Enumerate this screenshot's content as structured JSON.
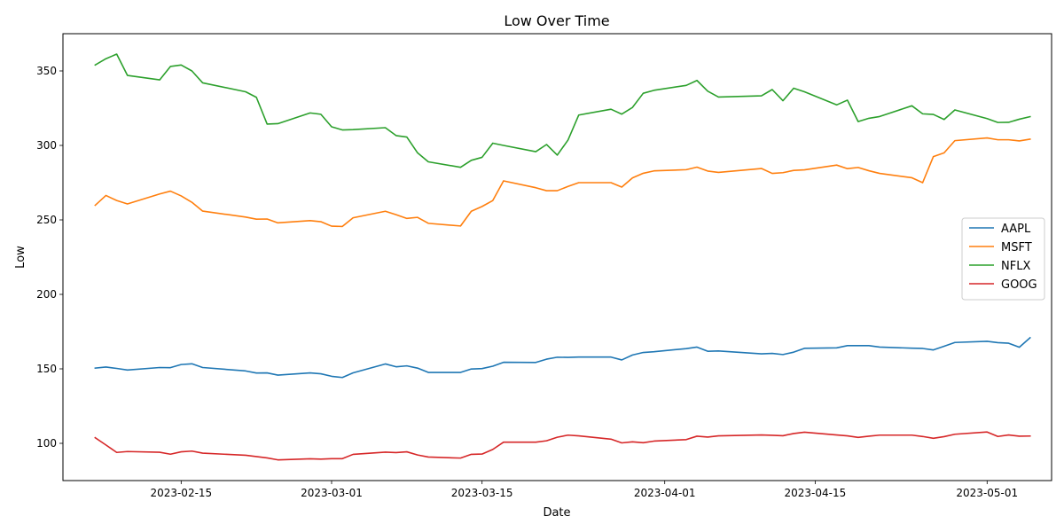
{
  "chart_data": {
    "type": "line",
    "title": "Low Over Time",
    "xlabel": "Date",
    "ylabel": "Low",
    "xlim": [
      "2023-02-04",
      "2023-05-07"
    ],
    "ylim": [
      75,
      375
    ],
    "x_ticks": [
      "2023-02-15",
      "2023-03-01",
      "2023-03-15",
      "2023-04-01",
      "2023-04-15",
      "2023-05-01"
    ],
    "y_ticks": [
      100,
      150,
      200,
      250,
      300,
      350
    ],
    "grid": false,
    "legend_position": "center-right",
    "x": [
      "2023-02-07",
      "2023-02-08",
      "2023-02-09",
      "2023-02-10",
      "2023-02-13",
      "2023-02-14",
      "2023-02-15",
      "2023-02-16",
      "2023-02-17",
      "2023-02-21",
      "2023-02-22",
      "2023-02-23",
      "2023-02-24",
      "2023-02-27",
      "2023-02-28",
      "2023-03-01",
      "2023-03-02",
      "2023-03-03",
      "2023-03-06",
      "2023-03-07",
      "2023-03-08",
      "2023-03-09",
      "2023-03-10",
      "2023-03-13",
      "2023-03-14",
      "2023-03-15",
      "2023-03-16",
      "2023-03-17",
      "2023-03-20",
      "2023-03-21",
      "2023-03-22",
      "2023-03-23",
      "2023-03-24",
      "2023-03-27",
      "2023-03-28",
      "2023-03-29",
      "2023-03-30",
      "2023-03-31",
      "2023-04-03",
      "2023-04-04",
      "2023-04-05",
      "2023-04-06",
      "2023-04-10",
      "2023-04-11",
      "2023-04-12",
      "2023-04-13",
      "2023-04-14",
      "2023-04-17",
      "2023-04-18",
      "2023-04-19",
      "2023-04-20",
      "2023-04-21",
      "2023-04-24",
      "2023-04-25",
      "2023-04-26",
      "2023-04-27",
      "2023-04-28",
      "2023-05-01",
      "2023-05-02",
      "2023-05-03",
      "2023-05-04",
      "2023-05-05"
    ],
    "series": [
      {
        "name": "AAPL",
        "color": "#1f77b4",
        "values": [
          150.5,
          151.2,
          150.3,
          149.2,
          150.9,
          150.8,
          152.9,
          153.4,
          150.9,
          148.6,
          147.2,
          147.3,
          145.8,
          147.3,
          146.7,
          145.0,
          144.2,
          147.3,
          153.3,
          151.4,
          152.0,
          150.5,
          147.6,
          147.6,
          149.9,
          150.2,
          151.8,
          154.4,
          154.3,
          156.5,
          157.8,
          157.7,
          157.9,
          157.9,
          156.0,
          159.3,
          161.0,
          161.5,
          163.6,
          164.6,
          161.8,
          162.0,
          160.1,
          160.4,
          159.6,
          161.2,
          163.8,
          164.1,
          165.6,
          165.6,
          165.6,
          164.6,
          163.9,
          163.7,
          162.7,
          165.2,
          167.7,
          168.5,
          167.6,
          167.2,
          164.5,
          170.9
        ]
      },
      {
        "name": "MSFT",
        "color": "#ff7f0e",
        "values": [
          259.8,
          266.4,
          263.0,
          260.7,
          267.4,
          269.3,
          266.1,
          261.8,
          255.9,
          251.9,
          250.5,
          250.6,
          248.0,
          249.5,
          248.8,
          245.8,
          245.6,
          251.4,
          255.8,
          253.5,
          251.0,
          251.7,
          247.7,
          245.9,
          255.8,
          259.0,
          263.0,
          276.2,
          271.6,
          269.6,
          269.6,
          272.5,
          275.0,
          275.0,
          272.0,
          278.2,
          281.3,
          282.9,
          283.7,
          285.4,
          282.8,
          281.9,
          284.5,
          281.2,
          281.7,
          283.2,
          283.6,
          286.8,
          284.4,
          285.2,
          283.0,
          281.2,
          278.3,
          275.0,
          292.5,
          295.0,
          303.2,
          305.0,
          303.8,
          303.8,
          303.0,
          304.2
        ]
      },
      {
        "name": "NFLX",
        "color": "#2ca02c",
        "values": [
          354.0,
          358.2,
          361.3,
          347.0,
          344.0,
          353.0,
          354.0,
          350.0,
          342.0,
          336.0,
          332.3,
          314.3,
          314.6,
          321.8,
          320.9,
          312.5,
          310.4,
          310.6,
          311.9,
          306.6,
          305.6,
          295.0,
          289.0,
          285.3,
          290.0,
          292.0,
          301.5,
          300.0,
          295.8,
          300.6,
          293.5,
          303.6,
          320.4,
          324.3,
          321.0,
          325.5,
          335.0,
          337.0,
          340.3,
          343.6,
          336.4,
          332.5,
          333.3,
          337.5,
          330.0,
          338.4,
          336.0,
          327.2,
          330.4,
          316.0,
          318.2,
          319.4,
          326.6,
          321.2,
          320.8,
          317.4,
          323.8,
          318.0,
          315.4,
          315.5,
          317.6,
          319.3
        ]
      },
      {
        "name": "GOOG",
        "color": "#d62728",
        "values": [
          103.8,
          98.9,
          93.9,
          94.5,
          94.0,
          92.7,
          94.3,
          94.8,
          93.4,
          92.0,
          91.1,
          90.2,
          88.9,
          89.6,
          89.4,
          89.7,
          89.7,
          92.6,
          94.1,
          93.8,
          94.3,
          92.2,
          90.8,
          90.1,
          92.6,
          92.8,
          95.9,
          100.8,
          100.8,
          101.7,
          104.1,
          105.5,
          105.0,
          102.8,
          100.3,
          101.0,
          100.4,
          101.5,
          102.5,
          104.8,
          104.2,
          105.0,
          105.6,
          105.4,
          105.1,
          106.6,
          107.5,
          105.6,
          105.0,
          104.0,
          104.8,
          105.5,
          105.5,
          104.6,
          103.4,
          104.5,
          106.1,
          107.6,
          104.6,
          105.6,
          104.8,
          104.9
        ]
      }
    ]
  }
}
